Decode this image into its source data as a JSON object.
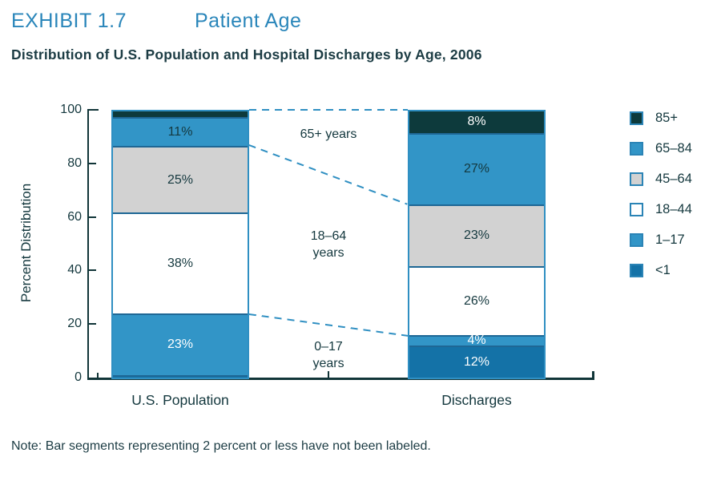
{
  "header": {
    "exhibit": "EXHIBIT 1.7",
    "title": "Patient Age"
  },
  "subtitle": "Distribution of U.S. Population and Hospital Discharges by Age, 2006",
  "note": "Note: Bar segments representing 2 percent or less have not been labeled.",
  "colors": {
    "title_blue": "#2a86ba",
    "bar_outline": "#2f8fc2",
    "segment_divider": "#1e6795",
    "dashed_connector": "#2f8fc2",
    "axis": "#113538",
    "dark_text": "#14383e"
  },
  "chart_data": {
    "type": "bar",
    "stacked": true,
    "title": "Distribution of U.S. Population and Hospital Discharges by Age, 2006",
    "ylabel": "Percent Distribution",
    "xlabel": "",
    "ylim": [
      0,
      100
    ],
    "yticks": [
      0,
      20,
      40,
      60,
      80,
      100
    ],
    "grid": false,
    "legend_position": "right",
    "categories": [
      "U.S. Population",
      "Discharges"
    ],
    "series": [
      {
        "name": "<1",
        "color": "#1472a7",
        "label_color": "#ffffff",
        "values": [
          1,
          12
        ],
        "labels": [
          "",
          "12%"
        ]
      },
      {
        "name": "1–17",
        "color": "#3295c7",
        "label_color": "#ffffff",
        "values": [
          23,
          4
        ],
        "labels": [
          "23%",
          "4%"
        ]
      },
      {
        "name": "18–44",
        "color": "#ffffff",
        "label_color": "#14383e",
        "values": [
          38,
          26
        ],
        "labels": [
          "38%",
          "26%"
        ]
      },
      {
        "name": "45–64",
        "color": "#d2d2d2",
        "label_color": "#14383e",
        "values": [
          25,
          23
        ],
        "labels": [
          "25%",
          "23%"
        ]
      },
      {
        "name": "65–84",
        "color": "#3295c7",
        "label_color": "#14383e",
        "values": [
          11,
          27
        ],
        "labels": [
          "11%",
          "27%"
        ]
      },
      {
        "name": "85+",
        "color": "#0d3a3c",
        "label_color": "#ffffff",
        "values": [
          2,
          8
        ],
        "labels": [
          "",
          "8%"
        ]
      }
    ],
    "legend": [
      "85+",
      "65–84",
      "45–64",
      "18–44",
      "1–17",
      "<1"
    ],
    "connector_labels": [
      "65+ years",
      "18–64\nyears",
      "0–17\nyears"
    ],
    "annotations": "Dashed lines connect age-group boundaries (65+, 18–64, 0–17) between the two bars"
  }
}
